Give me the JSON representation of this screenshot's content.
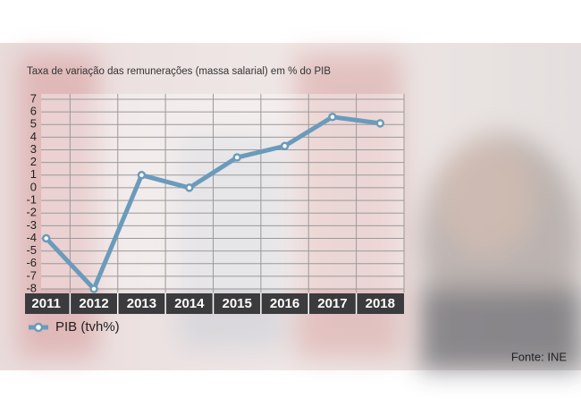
{
  "chart_data": {
    "type": "line",
    "title": "Taxa de variação das remunerações (massa salarial) em % do PIB",
    "categories": [
      "2011",
      "2012",
      "2013",
      "2014",
      "2015",
      "2016",
      "2017",
      "2018"
    ],
    "series": [
      {
        "name": "PIB (tvh%)",
        "color": "#6b9bbb",
        "values": [
          -4,
          -8,
          1,
          0,
          2.4,
          3.3,
          5.6,
          5.1
        ]
      }
    ],
    "ylim": [
      -8,
      7
    ],
    "yticks": [
      -8,
      -7,
      -6,
      -5,
      -4,
      -3,
      -2,
      -1,
      0,
      1,
      2,
      3,
      4,
      5,
      6,
      7
    ],
    "grid": true,
    "source": "Fonte: INE"
  }
}
